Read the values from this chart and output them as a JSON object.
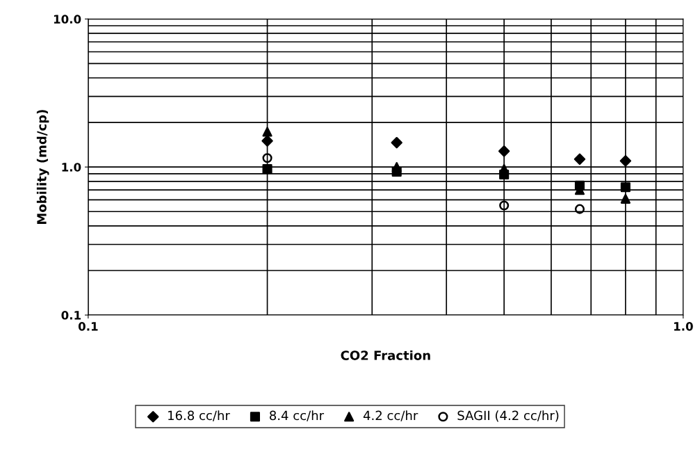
{
  "chart_data": {
    "type": "scatter",
    "xlabel": "CO2 Fraction",
    "ylabel": "Mobility (md/cp)",
    "log": "xy",
    "grid": true,
    "legend": "bottom",
    "xlim": [
      0.1,
      1.0
    ],
    "xticks": [
      {
        "value": 0.1,
        "label": "0.1"
      },
      {
        "value": 1.0,
        "label": "1.0"
      }
    ],
    "ylim": [
      0.1,
      10.0
    ],
    "yticks": [
      {
        "value": 0.1,
        "label": "0.1"
      },
      {
        "value": 1.0,
        "label": "1.0"
      },
      {
        "value": 10.0,
        "label": "10.0"
      }
    ],
    "series": [
      {
        "name": "16.8 cc/hr",
        "color": "#000000",
        "marker": "diamond",
        "x": [
          0.2,
          0.33,
          0.5,
          0.67,
          0.8
        ],
        "values": [
          1.5,
          1.46,
          1.28,
          1.13,
          1.1
        ]
      },
      {
        "name": "8.4 cc/hr",
        "color": "#000000",
        "marker": "square",
        "x": [
          0.2,
          0.33,
          0.5,
          0.67,
          0.8
        ],
        "values": [
          0.97,
          0.93,
          0.89,
          0.75,
          0.73
        ]
      },
      {
        "name": "4.2 cc/hr",
        "color": "#000000",
        "marker": "triangle",
        "x": [
          0.2,
          0.33,
          0.5,
          0.67,
          0.8
        ],
        "values": [
          1.73,
          1.0,
          0.97,
          0.7,
          0.61
        ]
      },
      {
        "name": "SAGII (4.2 cc/hr)",
        "color": "#000000",
        "marker": "circle",
        "x": [
          0.2,
          0.5,
          0.67
        ],
        "values": [
          1.15,
          0.55,
          0.52
        ]
      }
    ]
  }
}
